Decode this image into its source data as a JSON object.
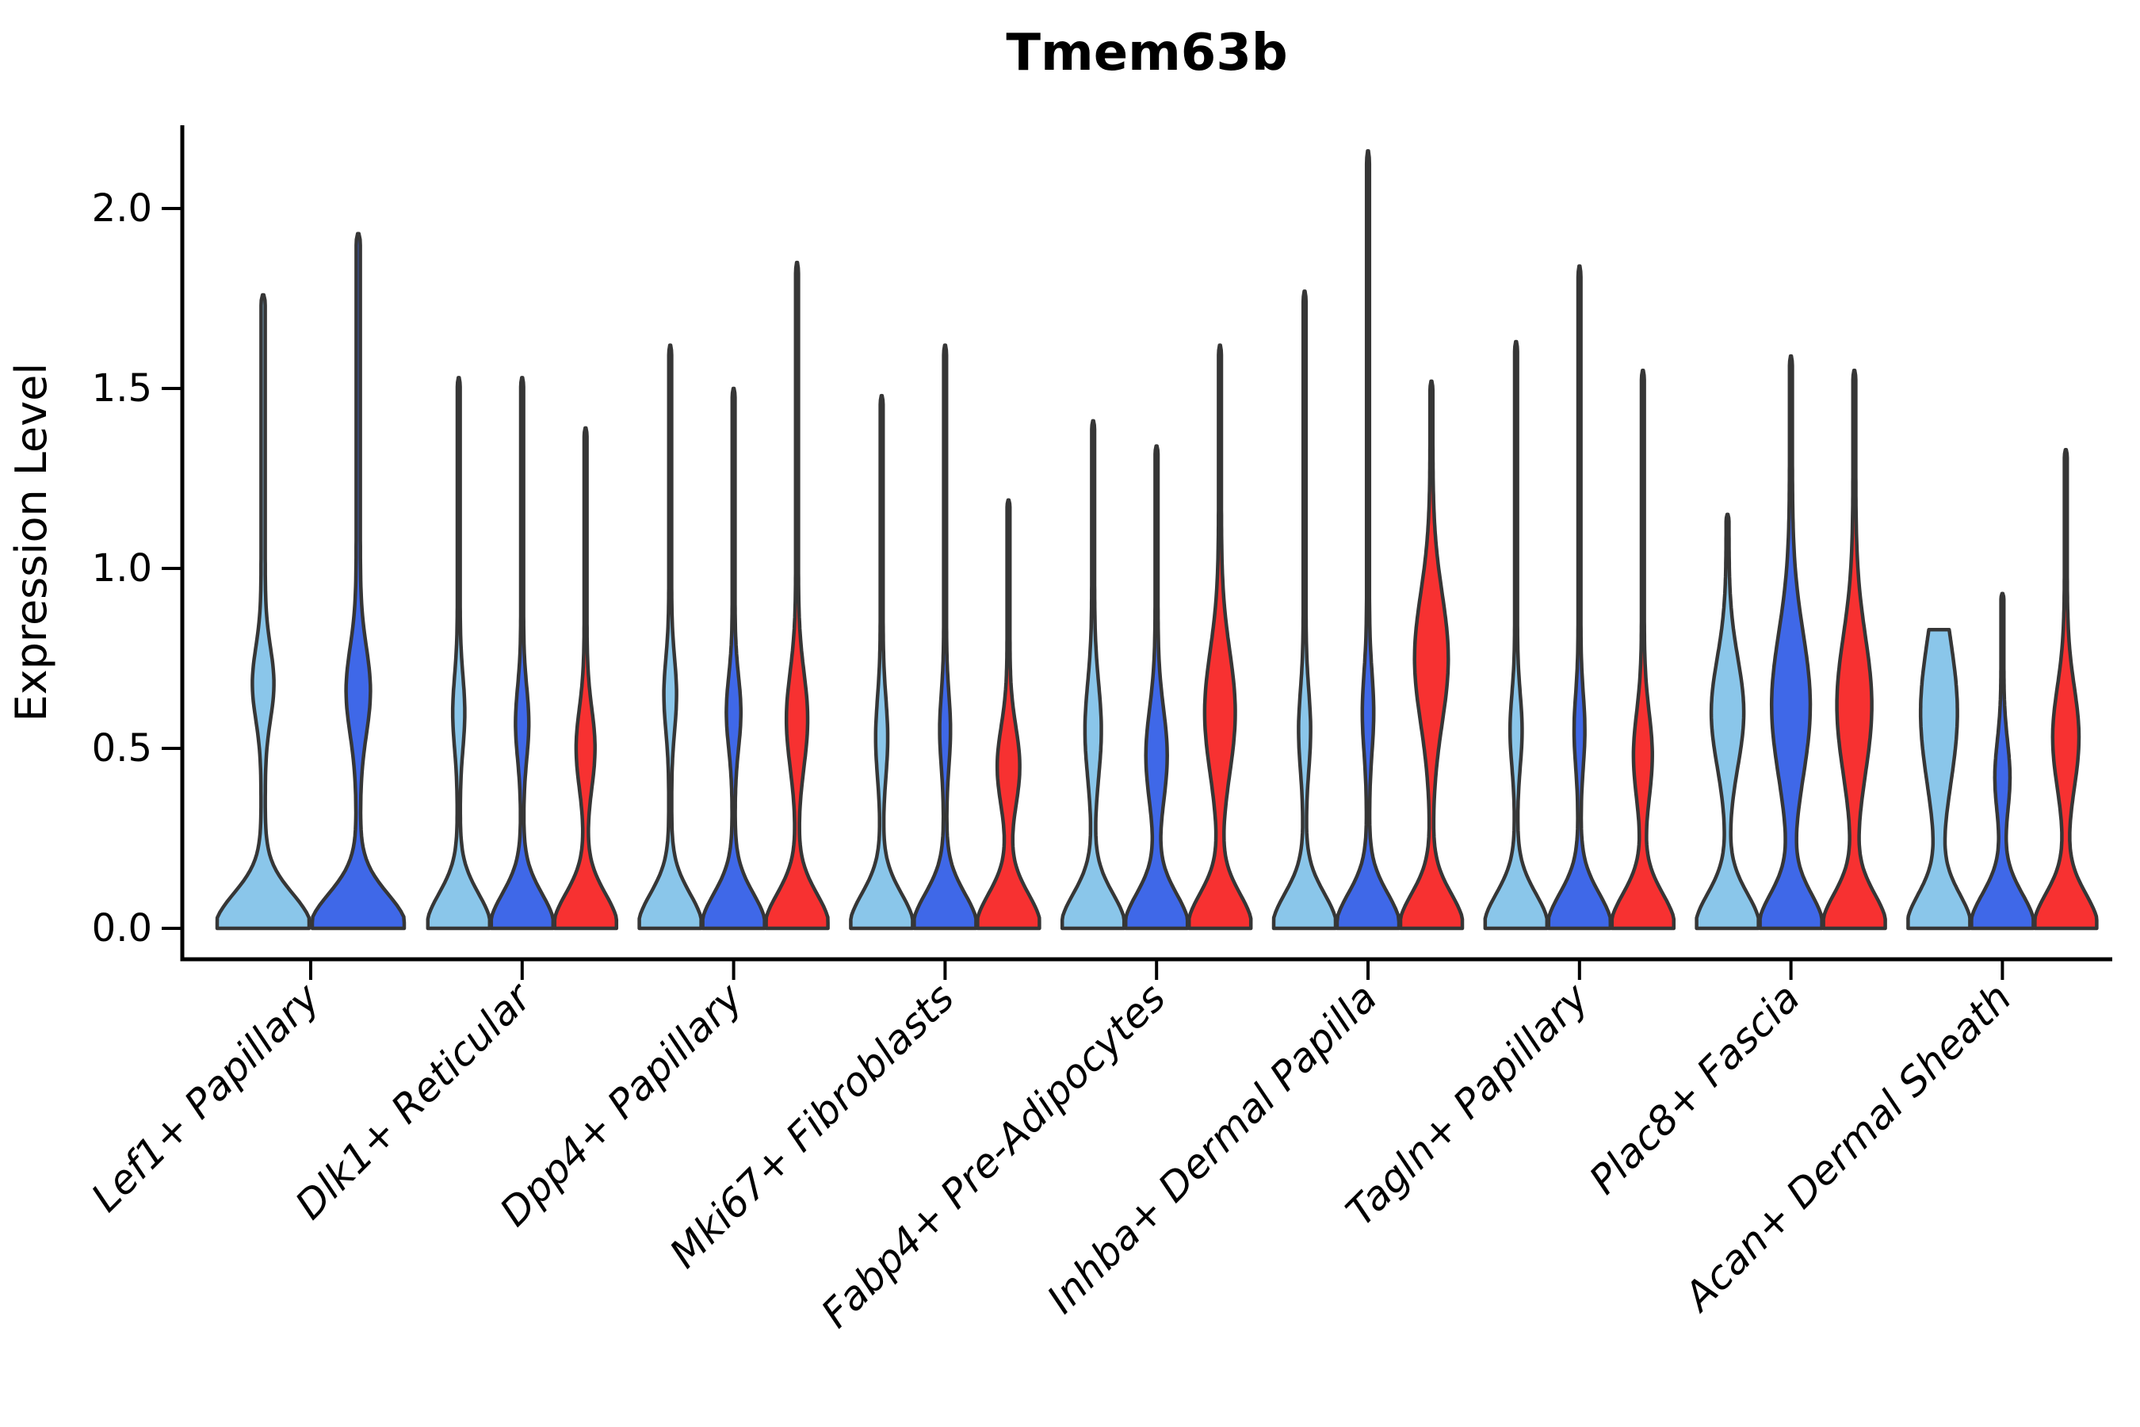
{
  "chart_data": {
    "type": "violin",
    "title": "Tmem63b",
    "ylabel": "Expression Level",
    "xlabel": "",
    "ylim": [
      0,
      2.23
    ],
    "yticks": [
      "0.0",
      "0.5",
      "1.0",
      "1.5",
      "2.0"
    ],
    "ytick_values": [
      0,
      0.5,
      1.0,
      1.5,
      2.0
    ],
    "grid": "off",
    "legend": "none",
    "x_label_rotation_deg": 45,
    "categories": [
      "Lef1+ Papillary",
      "Dlk1+ Reticular",
      "Dpp4+ Papillary",
      "Mki67+ Fibroblasts",
      "Fabp4+ Pre-Adipocytes",
      "Inhba+ Dermal Papilla",
      "Tagln+ Papillary",
      "Plac8+ Fascia",
      "Acan+ Dermal Sheath"
    ],
    "palette": {
      "split1": "#8AC6EA",
      "split2": "#3F68E8",
      "split3": "#F73131",
      "outline": "#363636",
      "axis": "#000000"
    },
    "groups": [
      {
        "category": "Lef1+ Papillary",
        "violins": [
          {
            "split": 1,
            "max": 1.76,
            "bump_center": 0.68,
            "bump_sigma": 0.1,
            "bump_weight": 0.19,
            "flat_top": false
          },
          {
            "split": 2,
            "max": 1.93,
            "bump_center": 0.66,
            "bump_sigma": 0.12,
            "bump_weight": 0.22,
            "flat_top": false
          }
        ]
      },
      {
        "category": "Dlk1+ Reticular",
        "violins": [
          {
            "split": 1,
            "max": 1.53,
            "bump_center": 0.6,
            "bump_sigma": 0.1,
            "bump_weight": 0.15,
            "flat_top": false
          },
          {
            "split": 2,
            "max": 1.53,
            "bump_center": 0.57,
            "bump_sigma": 0.1,
            "bump_weight": 0.17,
            "flat_top": false
          },
          {
            "split": 3,
            "max": 1.39,
            "bump_center": 0.5,
            "bump_sigma": 0.11,
            "bump_weight": 0.26,
            "flat_top": false
          }
        ]
      },
      {
        "category": "Dpp4+ Papillary",
        "violins": [
          {
            "split": 1,
            "max": 1.62,
            "bump_center": 0.65,
            "bump_sigma": 0.1,
            "bump_weight": 0.16,
            "flat_top": false
          },
          {
            "split": 2,
            "max": 1.5,
            "bump_center": 0.6,
            "bump_sigma": 0.1,
            "bump_weight": 0.19,
            "flat_top": false
          },
          {
            "split": 3,
            "max": 1.85,
            "bump_center": 0.58,
            "bump_sigma": 0.13,
            "bump_weight": 0.3,
            "flat_top": false
          }
        ]
      },
      {
        "category": "Mki67+ Fibroblasts",
        "violins": [
          {
            "split": 1,
            "max": 1.48,
            "bump_center": 0.53,
            "bump_sigma": 0.11,
            "bump_weight": 0.15,
            "flat_top": false
          },
          {
            "split": 2,
            "max": 1.62,
            "bump_center": 0.55,
            "bump_sigma": 0.1,
            "bump_weight": 0.13,
            "flat_top": false
          },
          {
            "split": 3,
            "max": 1.19,
            "bump_center": 0.45,
            "bump_sigma": 0.11,
            "bump_weight": 0.32,
            "flat_top": false
          }
        ]
      },
      {
        "category": "Fabp4+ Pre-Adipocytes",
        "violins": [
          {
            "split": 1,
            "max": 1.41,
            "bump_center": 0.55,
            "bump_sigma": 0.13,
            "bump_weight": 0.22,
            "flat_top": false
          },
          {
            "split": 2,
            "max": 1.34,
            "bump_center": 0.48,
            "bump_sigma": 0.13,
            "bump_weight": 0.3,
            "flat_top": false
          },
          {
            "split": 3,
            "max": 1.62,
            "bump_center": 0.6,
            "bump_sigma": 0.17,
            "bump_weight": 0.45,
            "flat_top": false
          }
        ]
      },
      {
        "category": "Inhba+ Dermal Papilla",
        "violins": [
          {
            "split": 1,
            "max": 1.77,
            "bump_center": 0.55,
            "bump_sigma": 0.11,
            "bump_weight": 0.15,
            "flat_top": false
          },
          {
            "split": 2,
            "max": 2.16,
            "bump_center": 0.6,
            "bump_sigma": 0.11,
            "bump_weight": 0.14,
            "flat_top": false
          },
          {
            "split": 3,
            "max": 1.52,
            "bump_center": 0.75,
            "bump_sigma": 0.18,
            "bump_weight": 0.5,
            "flat_top": false
          }
        ]
      },
      {
        "category": "Tagln+ Papillary",
        "violins": [
          {
            "split": 1,
            "max": 1.63,
            "bump_center": 0.55,
            "bump_sigma": 0.1,
            "bump_weight": 0.15,
            "flat_top": false
          },
          {
            "split": 2,
            "max": 1.84,
            "bump_center": 0.55,
            "bump_sigma": 0.1,
            "bump_weight": 0.13,
            "flat_top": false
          },
          {
            "split": 3,
            "max": 1.55,
            "bump_center": 0.48,
            "bump_sigma": 0.12,
            "bump_weight": 0.26,
            "flat_top": false
          }
        ]
      },
      {
        "category": "Plac8+ Fascia",
        "violins": [
          {
            "split": 1,
            "max": 1.15,
            "bump_center": 0.6,
            "bump_sigma": 0.15,
            "bump_weight": 0.48,
            "flat_top": false
          },
          {
            "split": 2,
            "max": 1.59,
            "bump_center": 0.62,
            "bump_sigma": 0.2,
            "bump_weight": 0.58,
            "flat_top": false
          },
          {
            "split": 3,
            "max": 1.55,
            "bump_center": 0.62,
            "bump_sigma": 0.19,
            "bump_weight": 0.52,
            "flat_top": false
          }
        ]
      },
      {
        "category": "Acan+ Dermal Sheath",
        "violins": [
          {
            "split": 1,
            "max": 0.83,
            "bump_center": 0.6,
            "bump_sigma": 0.2,
            "bump_weight": 0.55,
            "flat_top": true
          },
          {
            "split": 2,
            "max": 0.93,
            "bump_center": 0.42,
            "bump_sigma": 0.1,
            "bump_weight": 0.2,
            "flat_top": false
          },
          {
            "split": 3,
            "max": 1.33,
            "bump_center": 0.53,
            "bump_sigma": 0.14,
            "bump_weight": 0.38,
            "flat_top": false
          }
        ]
      }
    ]
  }
}
